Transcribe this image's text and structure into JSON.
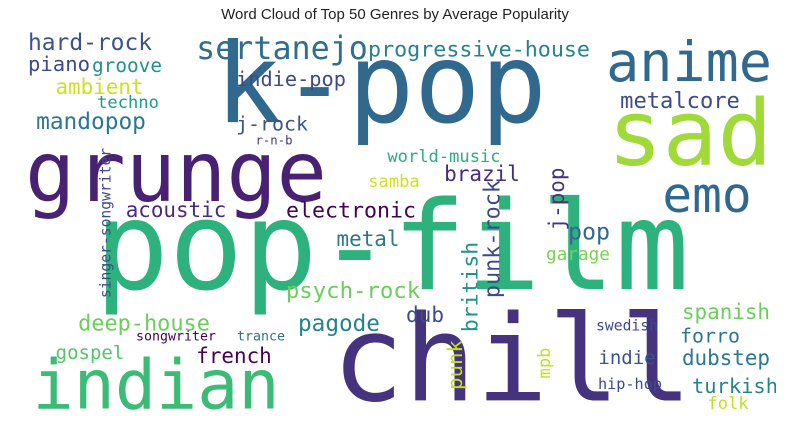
{
  "chart_data": {
    "type": "wordcloud",
    "title": "Word Cloud of Top 50 Genres by Average Popularity",
    "words": [
      {
        "text": "pop-film",
        "color": "#2db27d",
        "rotate": 0
      },
      {
        "text": "k-pop",
        "color": "#31688e",
        "rotate": 0
      },
      {
        "text": "chill",
        "color": "#46337e",
        "rotate": 0
      },
      {
        "text": "sad",
        "color": "#a0da39",
        "rotate": 0
      },
      {
        "text": "grunge",
        "color": "#482173",
        "rotate": 0
      },
      {
        "text": "anime",
        "color": "#31688e",
        "rotate": 0
      },
      {
        "text": "indian",
        "color": "#3bbb75",
        "rotate": 0
      },
      {
        "text": "emo",
        "color": "#31688e",
        "rotate": 0
      },
      {
        "text": "sertanejo",
        "color": "#2e6e8e",
        "rotate": 0
      },
      {
        "text": "hard-rock",
        "color": "#3b528b",
        "rotate": 0
      },
      {
        "text": "progressive-house",
        "color": "#26828e",
        "rotate": 0
      },
      {
        "text": "piano",
        "color": "#3e4989",
        "rotate": 0
      },
      {
        "text": "groove",
        "color": "#21918c",
        "rotate": 0
      },
      {
        "text": "ambient",
        "color": "#cde11d",
        "rotate": 0
      },
      {
        "text": "indie-pop",
        "color": "#3e4989",
        "rotate": 0
      },
      {
        "text": "techno",
        "color": "#1f9a8a",
        "rotate": 0
      },
      {
        "text": "metalcore",
        "color": "#3e4989",
        "rotate": 0
      },
      {
        "text": "mandopop",
        "color": "#2a788e",
        "rotate": 0
      },
      {
        "text": "j-rock",
        "color": "#3b528b",
        "rotate": 0
      },
      {
        "text": "r-n-b",
        "color": "#453781",
        "rotate": 0
      },
      {
        "text": "singer-songwriter",
        "color": "#3e4989",
        "rotate": 270
      },
      {
        "text": "world-music",
        "color": "#29af7f",
        "rotate": 0
      },
      {
        "text": "j-pop",
        "color": "#46337e",
        "rotate": 270
      },
      {
        "text": "samba",
        "color": "#cde11d",
        "rotate": 0
      },
      {
        "text": "brazil",
        "color": "#472c7a",
        "rotate": 0
      },
      {
        "text": "acoustic",
        "color": "#472c7a",
        "rotate": 0
      },
      {
        "text": "electronic",
        "color": "#440154",
        "rotate": 0
      },
      {
        "text": "punk-rock",
        "color": "#3e4989",
        "rotate": 270
      },
      {
        "text": "pop",
        "color": "#31688e",
        "rotate": 0
      },
      {
        "text": "metal",
        "color": "#2a788e",
        "rotate": 0
      },
      {
        "text": "british",
        "color": "#21918c",
        "rotate": 270
      },
      {
        "text": "garage",
        "color": "#7ad151",
        "rotate": 0
      },
      {
        "text": "psych-rock",
        "color": "#6ccd5a",
        "rotate": 0
      },
      {
        "text": "spanish",
        "color": "#6ccd5a",
        "rotate": 0
      },
      {
        "text": "deep-house",
        "color": "#6ccd5a",
        "rotate": 0
      },
      {
        "text": "pagode",
        "color": "#26828e",
        "rotate": 0
      },
      {
        "text": "dub",
        "color": "#3e4989",
        "rotate": 0
      },
      {
        "text": "swedish",
        "color": "#3e4989",
        "rotate": 0
      },
      {
        "text": "forro",
        "color": "#2a788e",
        "rotate": 0
      },
      {
        "text": "songwriter",
        "color": "#440154",
        "rotate": 0
      },
      {
        "text": "trance",
        "color": "#2c728e",
        "rotate": 0
      },
      {
        "text": "gospel",
        "color": "#52c569",
        "rotate": 0
      },
      {
        "text": "french",
        "color": "#440154",
        "rotate": 0
      },
      {
        "text": "punk",
        "color": "#c2df23",
        "rotate": 270
      },
      {
        "text": "mpb",
        "color": "#c2df23",
        "rotate": 270
      },
      {
        "text": "indie",
        "color": "#3b528b",
        "rotate": 0
      },
      {
        "text": "dubstep",
        "color": "#2a788e",
        "rotate": 0
      },
      {
        "text": "hip-hop",
        "color": "#3e4989",
        "rotate": 0
      },
      {
        "text": "turkish",
        "color": "#26828e",
        "rotate": 0
      },
      {
        "text": "folk",
        "color": "#c2df23",
        "rotate": 0
      }
    ]
  }
}
